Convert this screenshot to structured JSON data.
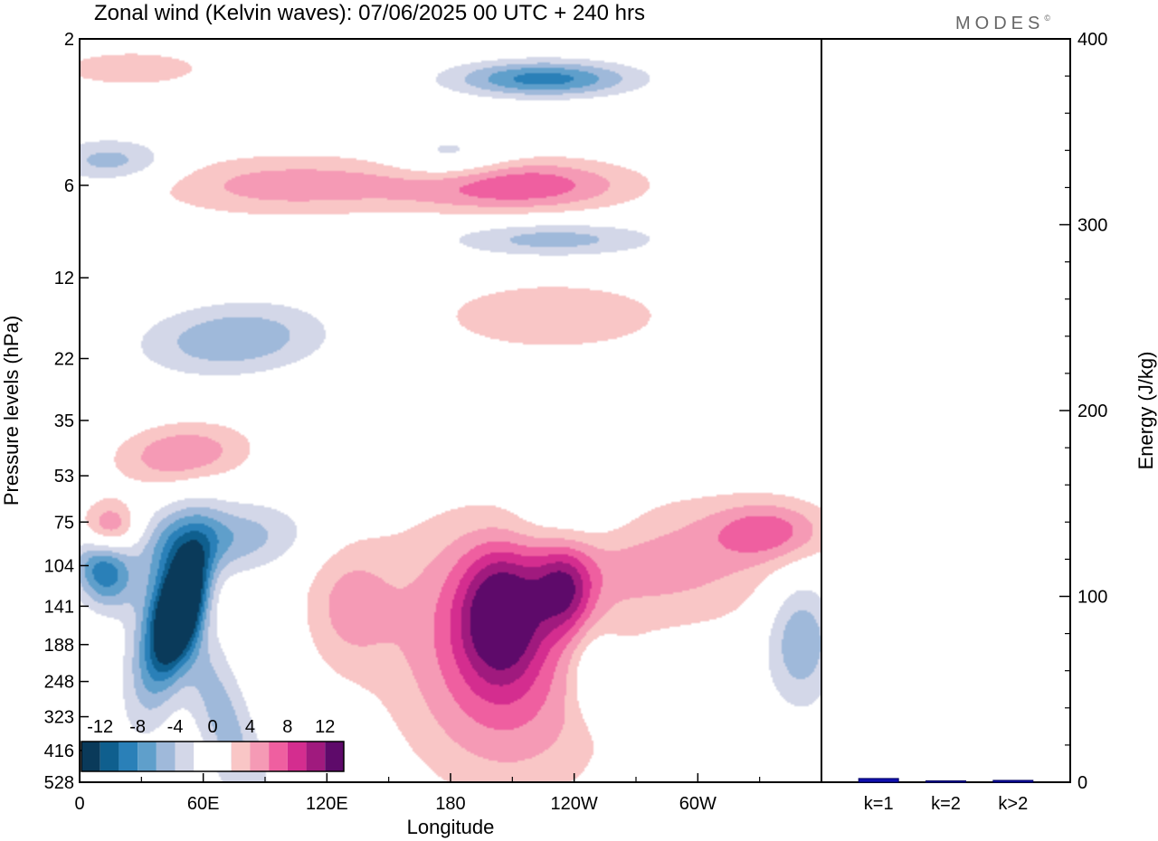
{
  "title": "Zonal wind (Kelvin waves):  07/06/2025  00 UTC  + 240 hrs",
  "logo": "MODES",
  "logo_mark": "©",
  "colors": {
    "frame": "#000000",
    "energy_bar_fill": "#1010b0",
    "energy_bar_edge": "#000060"
  },
  "chart_data": [
    {
      "type": "heatmap",
      "title": "Zonal wind (Kelvin waves):  07/06/2025  00 UTC  + 240 hrs",
      "xlabel": "Longitude",
      "ylabel": "Pressure levels (hPa)",
      "x_ticks": [
        "0",
        "60E",
        "120E",
        "180",
        "120W",
        "60W"
      ],
      "x_tick_degrees": [
        0,
        60,
        120,
        180,
        240,
        300
      ],
      "xlim": [
        0,
        360
      ],
      "y_ticks": [
        2,
        6,
        12,
        22,
        35,
        53,
        75,
        104,
        141,
        188,
        248,
        323,
        416,
        528
      ],
      "y_scale": "log",
      "y_inverted": true,
      "colorbar": {
        "labels": [
          "-12",
          "-8",
          "-4",
          "0",
          "4",
          "8",
          "12"
        ],
        "levels": [
          -14,
          -12,
          -10,
          -8,
          -6,
          -4,
          -2,
          0,
          2,
          4,
          6,
          8,
          10,
          12,
          14
        ],
        "colors": [
          "#0a3a5a",
          "#0f5f8e",
          "#2a80b8",
          "#5f9fcb",
          "#9fb9da",
          "#d3d7e8",
          "#ffffff",
          "#ffffff",
          "#f9c6c6",
          "#f59ab5",
          "#ef5fa0",
          "#d42d8f",
          "#a01a7e",
          "#5e0a6a"
        ]
      },
      "features": [
        {
          "lon": 50,
          "p": 141,
          "value": -14,
          "spread_lon": 7,
          "spread_logp": 0.12,
          "tilt": -0.35
        },
        {
          "lon": 42,
          "p": 160,
          "value": -10,
          "spread_lon": 10,
          "spread_logp": 0.2,
          "tilt": -0.3
        },
        {
          "lon": 70,
          "p": 330,
          "value": -5,
          "spread_lon": 10,
          "spread_logp": 0.25,
          "tilt": 0.5
        },
        {
          "lon": 12,
          "p": 110,
          "value": -9,
          "spread_lon": 10,
          "spread_logp": 0.08,
          "tilt": 0.2
        },
        {
          "lon": 65,
          "p": 85,
          "value": -6,
          "spread_lon": 30,
          "spread_logp": 0.08,
          "tilt": -0.5
        },
        {
          "lon": 15,
          "p": 78,
          "value": 7,
          "spread_lon": 10,
          "spread_logp": 0.06,
          "tilt": 0
        },
        {
          "lon": 50,
          "p": 45,
          "value": 6,
          "spread_lon": 22,
          "spread_logp": 0.07,
          "tilt": -0.5
        },
        {
          "lon": 75,
          "p": 19,
          "value": -6,
          "spread_lon": 30,
          "spread_logp": 0.08,
          "tilt": -0.6
        },
        {
          "lon": 100,
          "p": 6,
          "value": 5,
          "spread_lon": 45,
          "spread_logp": 0.07,
          "tilt": -0.15
        },
        {
          "lon": 180,
          "p": 5,
          "value": -4,
          "spread_lon": 20,
          "spread_logp": 0.06,
          "tilt": 0
        },
        {
          "lon": 210,
          "p": 6,
          "value": 8,
          "spread_lon": 40,
          "spread_logp": 0.06,
          "tilt": -0.05
        },
        {
          "lon": 225,
          "p": 2.7,
          "value": -9,
          "spread_lon": 30,
          "spread_logp": 0.04,
          "tilt": 0
        },
        {
          "lon": 230,
          "p": 9,
          "value": -5,
          "spread_lon": 35,
          "spread_logp": 0.04,
          "tilt": 0
        },
        {
          "lon": 230,
          "p": 16,
          "value": 4,
          "spread_lon": 40,
          "spread_logp": 0.08,
          "tilt": 0
        },
        {
          "lon": 15,
          "p": 5,
          "value": -5,
          "spread_lon": 20,
          "spread_logp": 0.05,
          "tilt": 0
        },
        {
          "lon": 25,
          "p": 2.5,
          "value": 4,
          "spread_lon": 25,
          "spread_logp": 0.04,
          "tilt": 0
        },
        {
          "lon": 205,
          "p": 150,
          "value": 10,
          "spread_lon": 14,
          "spread_logp": 0.15,
          "tilt": 0
        },
        {
          "lon": 195,
          "p": 170,
          "value": 6,
          "spread_lon": 35,
          "spread_logp": 0.25,
          "tilt": 0.2
        },
        {
          "lon": 235,
          "p": 125,
          "value": 8,
          "spread_lon": 10,
          "spread_logp": 0.1,
          "tilt": 0
        },
        {
          "lon": 280,
          "p": 100,
          "value": 5,
          "spread_lon": 45,
          "spread_logp": 0.15,
          "tilt": 0.3
        },
        {
          "lon": 335,
          "p": 80,
          "value": 6,
          "spread_lon": 20,
          "spread_logp": 0.07,
          "tilt": 0
        },
        {
          "lon": 130,
          "p": 140,
          "value": 4,
          "spread_lon": 15,
          "spread_logp": 0.15,
          "tilt": 0
        },
        {
          "lon": 210,
          "p": 350,
          "value": 3,
          "spread_lon": 35,
          "spread_logp": 0.2,
          "tilt": 0
        },
        {
          "lon": 250,
          "p": 240,
          "value": -4,
          "spread_lon": 8,
          "spread_logp": 0.1,
          "tilt": 0
        },
        {
          "lon": 350,
          "p": 180,
          "value": -6,
          "spread_lon": 12,
          "spread_logp": 0.15,
          "tilt": 0
        },
        {
          "lon": 240,
          "p": 75,
          "value": -3,
          "spread_lon": 25,
          "spread_logp": 0.08,
          "tilt": 0
        }
      ]
    },
    {
      "type": "bar",
      "categories": [
        "k=1",
        "k=2",
        "k>2"
      ],
      "values": [
        2,
        0.3,
        1
      ],
      "ylabel": "Energy (J/kg)",
      "ylim": [
        0,
        400
      ],
      "y_ticks": [
        0,
        100,
        200,
        300,
        400
      ]
    }
  ]
}
